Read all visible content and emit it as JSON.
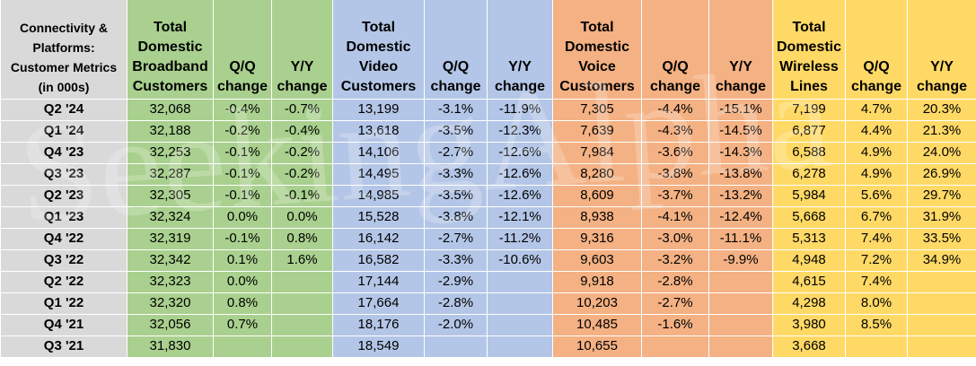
{
  "header": {
    "metric": "Connectivity & Platforms: Customer Metrics (in 000s)",
    "broadband": "Total Domestic Broadband Customers",
    "video": "Total Domestic Video Customers",
    "voice": "Total Domestic Voice Customers",
    "wireless": "Total Domestic Wireless Lines",
    "qq": "Q/Q change",
    "yy": "Y/Y change"
  },
  "rows": [
    {
      "q": "Q2 '24",
      "bb": "32,068",
      "bb_qq": "-0.4%",
      "bb_yy": "-0.7%",
      "vid": "13,199",
      "vid_qq": "-3.1%",
      "vid_yy": "-11.9%",
      "voi": "7,305",
      "voi_qq": "-4.4%",
      "voi_yy": "-15.1%",
      "wl": "7,199",
      "wl_qq": "4.7%",
      "wl_yy": "20.3%"
    },
    {
      "q": "Q1 '24",
      "bb": "32,188",
      "bb_qq": "-0.2%",
      "bb_yy": "-0.4%",
      "vid": "13,618",
      "vid_qq": "-3.5%",
      "vid_yy": "-12.3%",
      "voi": "7,639",
      "voi_qq": "-4.3%",
      "voi_yy": "-14.5%",
      "wl": "6,877",
      "wl_qq": "4.4%",
      "wl_yy": "21.3%"
    },
    {
      "q": "Q4 '23",
      "bb": "32,253",
      "bb_qq": "-0.1%",
      "bb_yy": "-0.2%",
      "vid": "14,106",
      "vid_qq": "-2.7%",
      "vid_yy": "-12.6%",
      "voi": "7,984",
      "voi_qq": "-3.6%",
      "voi_yy": "-14.3%",
      "wl": "6,588",
      "wl_qq": "4.9%",
      "wl_yy": "24.0%"
    },
    {
      "q": "Q3 '23",
      "bb": "32,287",
      "bb_qq": "-0.1%",
      "bb_yy": "-0.2%",
      "vid": "14,495",
      "vid_qq": "-3.3%",
      "vid_yy": "-12.6%",
      "voi": "8,280",
      "voi_qq": "-3.8%",
      "voi_yy": "-13.8%",
      "wl": "6,278",
      "wl_qq": "4.9%",
      "wl_yy": "26.9%"
    },
    {
      "q": "Q2 '23",
      "bb": "32,305",
      "bb_qq": "-0.1%",
      "bb_yy": "-0.1%",
      "vid": "14,985",
      "vid_qq": "-3.5%",
      "vid_yy": "-12.6%",
      "voi": "8,609",
      "voi_qq": "-3.7%",
      "voi_yy": "-13.2%",
      "wl": "5,984",
      "wl_qq": "5.6%",
      "wl_yy": "29.7%"
    },
    {
      "q": "Q1 '23",
      "bb": "32,324",
      "bb_qq": "0.0%",
      "bb_yy": "0.0%",
      "vid": "15,528",
      "vid_qq": "-3.8%",
      "vid_yy": "-12.1%",
      "voi": "8,938",
      "voi_qq": "-4.1%",
      "voi_yy": "-12.4%",
      "wl": "5,668",
      "wl_qq": "6.7%",
      "wl_yy": "31.9%"
    },
    {
      "q": "Q4 '22",
      "bb": "32,319",
      "bb_qq": "-0.1%",
      "bb_yy": "0.8%",
      "vid": "16,142",
      "vid_qq": "-2.7%",
      "vid_yy": "-11.2%",
      "voi": "9,316",
      "voi_qq": "-3.0%",
      "voi_yy": "-11.1%",
      "wl": "5,313",
      "wl_qq": "7.4%",
      "wl_yy": "33.5%"
    },
    {
      "q": "Q3 '22",
      "bb": "32,342",
      "bb_qq": "0.1%",
      "bb_yy": "1.6%",
      "vid": "16,582",
      "vid_qq": "-3.3%",
      "vid_yy": "-10.6%",
      "voi": "9,603",
      "voi_qq": "-3.2%",
      "voi_yy": "-9.9%",
      "wl": "4,948",
      "wl_qq": "7.2%",
      "wl_yy": "34.9%"
    },
    {
      "q": "Q2 '22",
      "bb": "32,323",
      "bb_qq": "0.0%",
      "bb_yy": "",
      "vid": "17,144",
      "vid_qq": "-2.9%",
      "vid_yy": "",
      "voi": "9,918",
      "voi_qq": "-2.8%",
      "voi_yy": "",
      "wl": "4,615",
      "wl_qq": "7.4%",
      "wl_yy": ""
    },
    {
      "q": "Q1 '22",
      "bb": "32,320",
      "bb_qq": "0.8%",
      "bb_yy": "",
      "vid": "17,664",
      "vid_qq": "-2.8%",
      "vid_yy": "",
      "voi": "10,203",
      "voi_qq": "-2.7%",
      "voi_yy": "",
      "wl": "4,298",
      "wl_qq": "8.0%",
      "wl_yy": ""
    },
    {
      "q": "Q4 '21",
      "bb": "32,056",
      "bb_qq": "0.7%",
      "bb_yy": "",
      "vid": "18,176",
      "vid_qq": "-2.0%",
      "vid_yy": "",
      "voi": "10,485",
      "voi_qq": "-1.6%",
      "voi_yy": "",
      "wl": "3,980",
      "wl_qq": "8.5%",
      "wl_yy": ""
    },
    {
      "q": "Q3 '21",
      "bb": "31,830",
      "bb_qq": "",
      "bb_yy": "",
      "vid": "18,549",
      "vid_qq": "",
      "vid_yy": "",
      "voi": "10,655",
      "voi_qq": "",
      "voi_yy": "",
      "wl": "3,668",
      "wl_qq": "",
      "wl_yy": ""
    }
  ]
}
